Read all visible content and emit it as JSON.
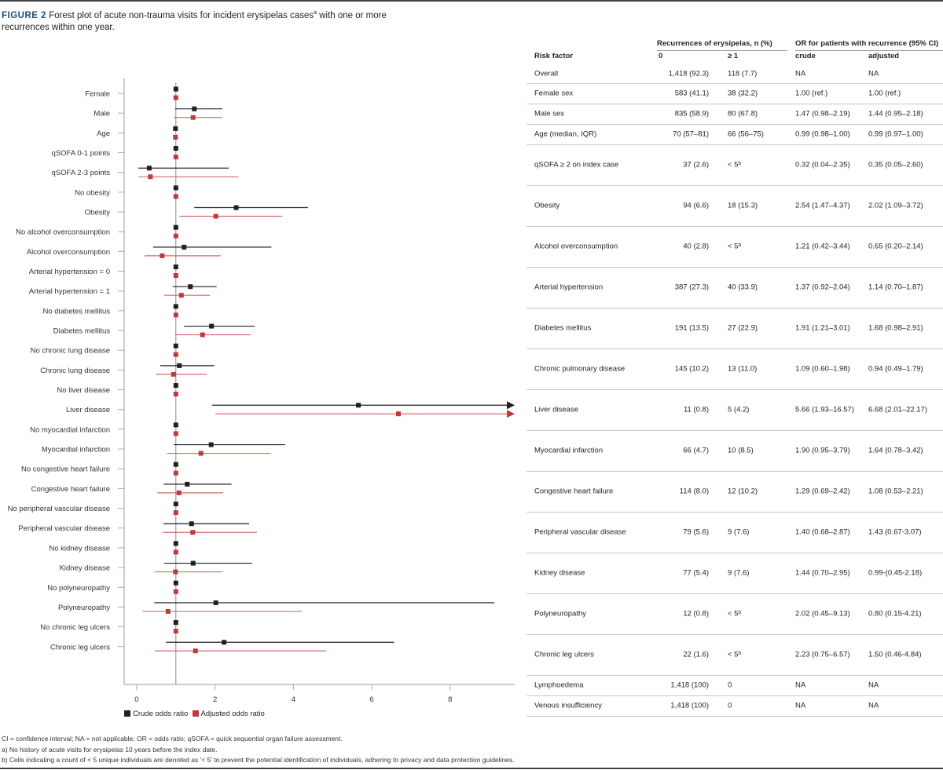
{
  "title": {
    "label": "FIGURE 2",
    "text": "Forest plot of acute non-trauma visits for incident erysipelas cases",
    "sup": "a",
    "text2": " with one or more recurrences within one year."
  },
  "colors": {
    "crude": "#231f20",
    "adjusted": "#c0393b",
    "adjusted_ci": "#d46a6a",
    "title": "#1f4e79"
  },
  "chart_data": {
    "type": "forest",
    "xlim": [
      -0.32,
      9.65
    ],
    "xticks": [
      "0",
      "2",
      "4",
      "6",
      "8"
    ],
    "reference_line": 1,
    "legend": {
      "placement": "bottom-left",
      "crude": "Crude odds ratio",
      "adjusted": "Adjusted odds ratio"
    },
    "rows": [
      {
        "label": "Female",
        "crude": [
          1,
          1,
          1
        ],
        "adjusted": [
          1,
          1,
          1
        ]
      },
      {
        "label": "Male",
        "crude": [
          1.47,
          0.98,
          2.19
        ],
        "adjusted": [
          1.44,
          0.95,
          2.18
        ]
      },
      {
        "label": "Age",
        "crude": [
          0.99,
          0.98,
          1.0
        ],
        "adjusted": [
          0.99,
          0.97,
          1.0
        ]
      },
      {
        "label": "qSOFA 0-1 points",
        "crude": [
          1,
          1,
          1
        ],
        "adjusted": [
          1,
          1,
          1
        ]
      },
      {
        "label": "qSOFA 2-3 points",
        "crude": [
          0.32,
          0.04,
          2.35
        ],
        "adjusted": [
          0.35,
          0.05,
          2.6
        ]
      },
      {
        "label": "No obesity",
        "crude": [
          1,
          1,
          1
        ],
        "adjusted": [
          1,
          1,
          1
        ]
      },
      {
        "label": "Obesity",
        "crude": [
          2.54,
          1.47,
          4.37
        ],
        "adjusted": [
          2.02,
          1.09,
          3.72
        ]
      },
      {
        "label": "No alcohol overconsumption",
        "crude": [
          1,
          1,
          1
        ],
        "adjusted": [
          1,
          1,
          1
        ]
      },
      {
        "label": "Alcohol overconsumption",
        "crude": [
          1.21,
          0.42,
          3.44
        ],
        "adjusted": [
          0.65,
          0.2,
          2.14
        ]
      },
      {
        "label": "Arterial hypertension = 0",
        "crude": [
          1,
          1,
          1
        ],
        "adjusted": [
          1,
          1,
          1
        ]
      },
      {
        "label": "Arterial hypertension = 1",
        "crude": [
          1.37,
          0.92,
          2.04
        ],
        "adjusted": [
          1.14,
          0.7,
          1.87
        ]
      },
      {
        "label": "No diabetes mellitus",
        "crude": [
          1,
          1,
          1
        ],
        "adjusted": [
          1,
          1,
          1
        ]
      },
      {
        "label": "Diabetes mellitus",
        "crude": [
          1.91,
          1.21,
          3.01
        ],
        "adjusted": [
          1.68,
          0.98,
          2.91
        ]
      },
      {
        "label": "No chronic lung disease",
        "crude": [
          1,
          1,
          1
        ],
        "adjusted": [
          1,
          1,
          1
        ]
      },
      {
        "label": "Chronic lung disease",
        "crude": [
          1.09,
          0.6,
          1.98
        ],
        "adjusted": [
          0.94,
          0.49,
          1.79
        ]
      },
      {
        "label": "No liver disease",
        "crude": [
          1,
          1,
          1
        ],
        "adjusted": [
          1,
          1,
          1
        ]
      },
      {
        "label": "Liver disease",
        "crude": [
          5.66,
          1.93,
          16.57
        ],
        "adjusted": [
          6.68,
          2.01,
          22.17
        ]
      },
      {
        "label": "No myocardial infarction",
        "crude": [
          1,
          1,
          1
        ],
        "adjusted": [
          1,
          1,
          1
        ]
      },
      {
        "label": "Myocardial infarction",
        "crude": [
          1.9,
          0.95,
          3.79
        ],
        "adjusted": [
          1.64,
          0.78,
          3.42
        ]
      },
      {
        "label": "No congestive heart failure",
        "crude": [
          1,
          1,
          1
        ],
        "adjusted": [
          1,
          1,
          1
        ]
      },
      {
        "label": "Congestive heart failure",
        "crude": [
          1.29,
          0.69,
          2.42
        ],
        "adjusted": [
          1.08,
          0.53,
          2.21
        ]
      },
      {
        "label": "No peripheral vascular disease",
        "crude": [
          1,
          1,
          1
        ],
        "adjusted": [
          1,
          1,
          1
        ]
      },
      {
        "label": "Peripheral vascular disease",
        "crude": [
          1.4,
          0.68,
          2.87
        ],
        "adjusted": [
          1.43,
          0.67,
          3.07
        ]
      },
      {
        "label": "No kidney disease",
        "crude": [
          1,
          1,
          1
        ],
        "adjusted": [
          1,
          1,
          1
        ]
      },
      {
        "label": "Kidney disease",
        "crude": [
          1.44,
          0.7,
          2.95
        ],
        "adjusted": [
          0.99,
          0.45,
          2.18
        ]
      },
      {
        "label": "No polyneuropathy",
        "crude": [
          1,
          1,
          1
        ],
        "adjusted": [
          1,
          1,
          1
        ]
      },
      {
        "label": "Polyneuropathy",
        "crude": [
          2.02,
          0.45,
          9.13
        ],
        "adjusted": [
          0.8,
          0.15,
          4.21
        ]
      },
      {
        "label": "No chronic leg ulcers",
        "crude": [
          1,
          1,
          1
        ],
        "adjusted": [
          1,
          1,
          1
        ]
      },
      {
        "label": "Chronic leg ulcers",
        "crude": [
          2.23,
          0.75,
          6.57
        ],
        "adjusted": [
          1.5,
          0.46,
          4.84
        ]
      }
    ]
  },
  "table": {
    "group_headers": {
      "recurrences": "Recurrences of erysipelas, n (%)",
      "or": "OR for patients with recurrence (95% CI)"
    },
    "headers": {
      "risk": "Risk factor",
      "zero": "0",
      "one": "≥ 1",
      "crude": "crude",
      "adjusted": "adjusted"
    },
    "rows": [
      {
        "risk": "Overall",
        "zero": "1,418 (92.3)",
        "one": "118 (7.7)",
        "crude": "NA",
        "adjusted": "NA"
      },
      {
        "risk": "Female sex",
        "zero": "583 (41.1)",
        "one": "38 (32.2)",
        "crude": "1.00 (ref.)",
        "adjusted": "1.00 (ref.)"
      },
      {
        "risk": "Male sex",
        "zero": "835 (58.9)",
        "one": "80 (67.8)",
        "crude": "1.47 (0.98–2.19)",
        "adjusted": "1.44 (0.95–2.18)"
      },
      {
        "risk": "Age (median, IQR)",
        "zero": "70 (57–81)",
        "one": "66 (56–75)",
        "crude": "0.99 (0.98–1.00)",
        "adjusted": "0.99 (0.97–1.00)"
      },
      {
        "risk": "qSOFA ≥ 2 on index case",
        "zero": "37 (2.6)",
        "one": "< 5ᵇ",
        "crude": "0.32 (0.04–2.35)",
        "adjusted": "0.35 (0.05–2.60)"
      },
      {
        "risk": "Obesity",
        "zero": "94 (6.6)",
        "one": "18 (15.3)",
        "crude": "2.54 (1.47–4.37)",
        "adjusted": "2.02 (1.09–3.72)"
      },
      {
        "risk": "Alcohol overconsumption",
        "zero": "40 (2.8)",
        "one": "< 5ᵇ",
        "crude": "1.21 (0.42–3.44)",
        "adjusted": "0.65 (0.20–2.14)"
      },
      {
        "risk": "Arterial hypertension",
        "zero": "387 (27.3)",
        "one": "40 (33.9)",
        "crude": "1.37 (0.92–2.04)",
        "adjusted": "1.14 (0.70–1.87)"
      },
      {
        "risk": "Diabetes mellitus",
        "zero": "191 (13.5)",
        "one": "27 (22.9)",
        "crude": "1.91 (1.21–3.01)",
        "adjusted": "1.68 (0.98–2.91)"
      },
      {
        "risk": "Chronic pulmonary disease",
        "zero": "145 (10.2)",
        "one": "13 (11.0)",
        "crude": "1.09 (0.60–1.98)",
        "adjusted": "0.94 (0.49–1.79)"
      },
      {
        "risk": "Liver disease",
        "zero": "11 (0.8)",
        "one": "5 (4.2)",
        "crude": "5.66 (1.93–16.57)",
        "adjusted": "6.68 (2.01–22.17)"
      },
      {
        "risk": "Myocardial infarction",
        "zero": "66 (4.7)",
        "one": "10 (8.5)",
        "crude": "1.90 (0.95–3.79)",
        "adjusted": "1.64 (0.78–3.42)"
      },
      {
        "risk": "Congestive heart failure",
        "zero": "114 (8.0)",
        "one": "12 (10.2)",
        "crude": "1.29 (0.69–2.42)",
        "adjusted": "1.08 (0.53–2.21)"
      },
      {
        "risk": "Peripheral vascular disease",
        "zero": "79 (5.6)",
        "one": "9 (7.6)",
        "crude": "1.40 (0.68–2.87)",
        "adjusted": "1.43 (0.67-3.07)"
      },
      {
        "risk": "Kidney disease",
        "zero": "77 (5.4)",
        "one": "9 (7.6)",
        "crude": "1.44 (0.70–2.95)",
        "adjusted": "0.99-(0.45-2.18)"
      },
      {
        "risk": "Polyneuropathy",
        "zero": "12 (0.8)",
        "one": "< 5ᵇ",
        "crude": "2.02 (0.45–9.13)",
        "adjusted": "0.80 (0.15-4.21)"
      },
      {
        "risk": "Chronic leg ulcers",
        "zero": "22 (1.6)",
        "one": "< 5ᵇ",
        "crude": "2.23 (0.75–6.57)",
        "adjusted": "1.50 (0.46-4.84)"
      },
      {
        "risk": "Lymphoedema",
        "zero": "1,418 (100)",
        "one": "0",
        "crude": "NA",
        "adjusted": "NA"
      },
      {
        "risk": "Venous insufficiency",
        "zero": "1,418 (100)",
        "one": "0",
        "crude": "NA",
        "adjusted": "NA"
      }
    ]
  },
  "notes": [
    "CI = confidence interval; NA = not applicable; OR = odds ratio; qSOFA = quick sequential organ failure assessment.",
    "a) No history of acute visits for erysipelas 10 years before the index date.",
    "b) Cells indicating a count of < 5 unique individuals are denoted as '< 5' to prevent the potential identification of individuals, adhering to privacy and data protection guidelines."
  ]
}
